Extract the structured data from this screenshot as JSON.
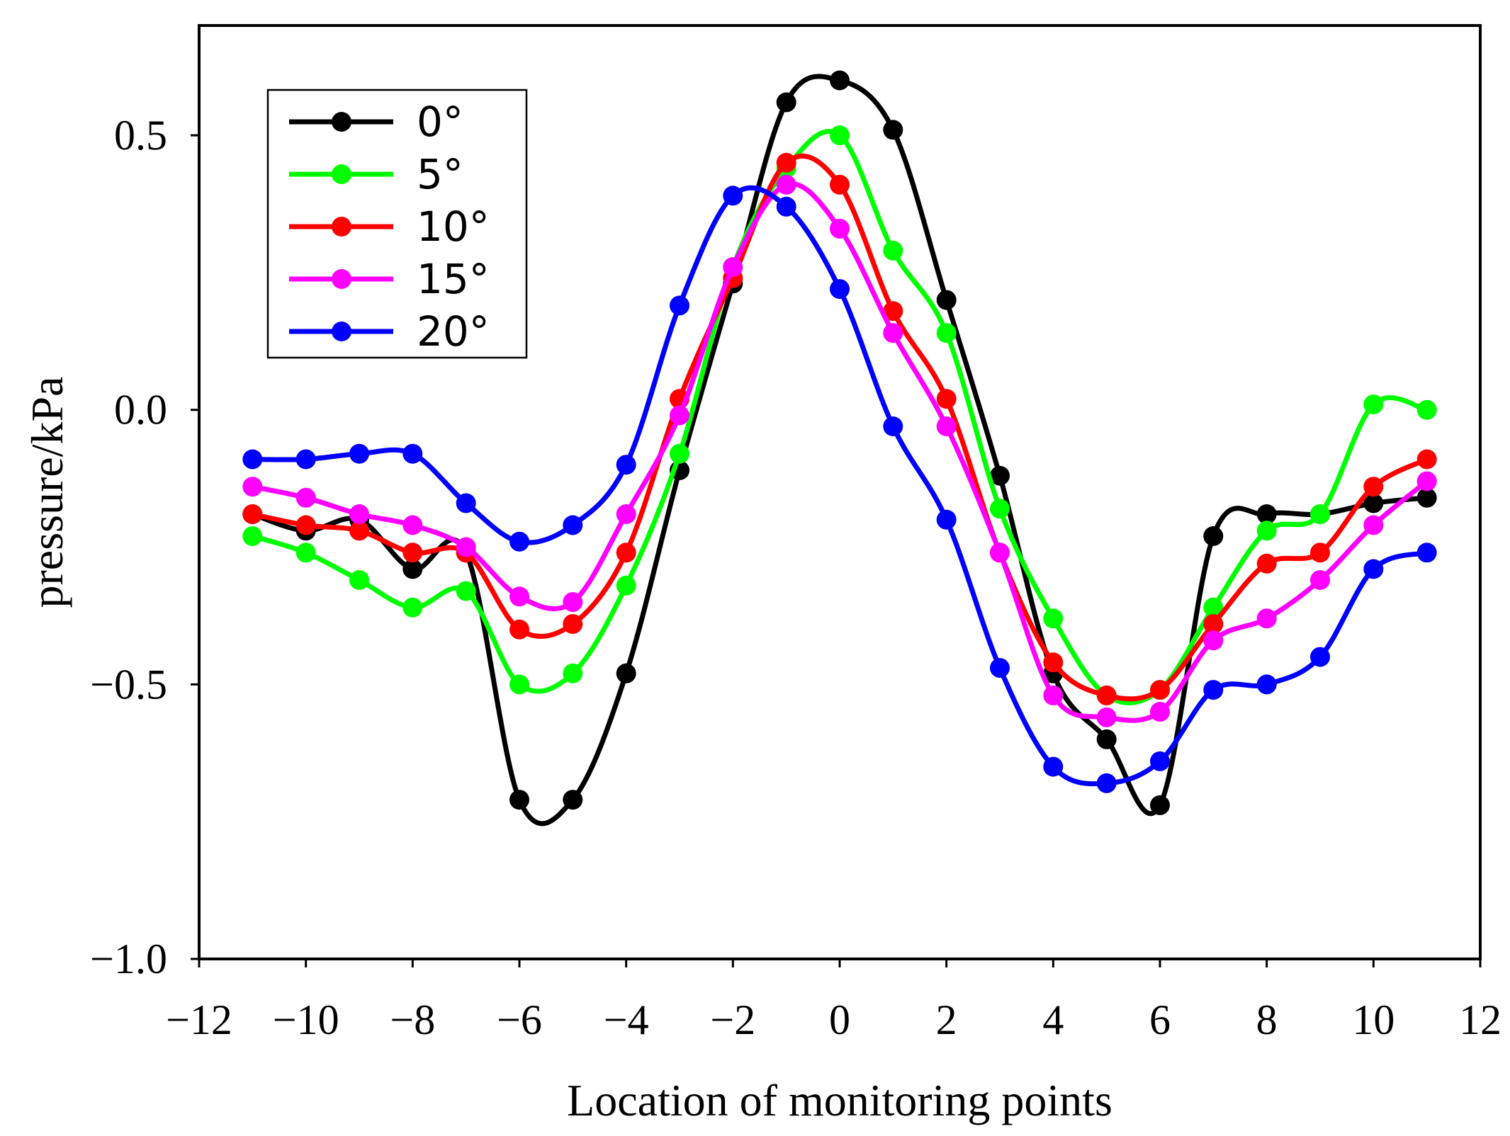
{
  "chart_data": {
    "type": "line",
    "title": "",
    "xlabel": "Location of monitoring points",
    "ylabel": "pressure/kPa",
    "xlim": [
      -12,
      12
    ],
    "ylim": [
      -1.0,
      0.7
    ],
    "xticks": [
      -12,
      -10,
      -8,
      -6,
      -4,
      -2,
      0,
      2,
      4,
      6,
      8,
      10,
      12
    ],
    "xtick_labels": [
      "−12",
      "−10",
      "−8",
      "−6",
      "−4",
      "−2",
      "0",
      "2",
      "4",
      "6",
      "8",
      "10",
      "12"
    ],
    "yticks": [
      -1.0,
      -0.5,
      0.0,
      0.5
    ],
    "ytick_labels": [
      "−1.0",
      "−0.5",
      "0.0",
      "0.5"
    ],
    "grid": false,
    "legend_position": "top-left",
    "x": [
      -11,
      -10,
      -9,
      -8,
      -7,
      -6,
      -5,
      -4,
      -3,
      -2,
      -1,
      0,
      1,
      2,
      3,
      4,
      5,
      6,
      7,
      8,
      9,
      10,
      11
    ],
    "series": [
      {
        "name": "0°",
        "color": "#000000",
        "values": [
          -0.19,
          -0.22,
          -0.2,
          -0.29,
          -0.26,
          -0.71,
          -0.71,
          -0.48,
          -0.11,
          0.23,
          0.56,
          0.6,
          0.51,
          0.2,
          -0.12,
          -0.48,
          -0.6,
          -0.72,
          -0.23,
          -0.19,
          -0.19,
          -0.17,
          -0.16
        ]
      },
      {
        "name": "5°",
        "color": "#00ff00",
        "values": [
          -0.23,
          -0.26,
          -0.31,
          -0.36,
          -0.33,
          -0.5,
          -0.48,
          -0.32,
          -0.08,
          0.26,
          0.44,
          0.5,
          0.29,
          0.14,
          -0.18,
          -0.38,
          -0.52,
          -0.51,
          -0.36,
          -0.22,
          -0.19,
          0.01,
          0.0
        ]
      },
      {
        "name": "10°",
        "color": "#ff0000",
        "values": [
          -0.19,
          -0.21,
          -0.22,
          -0.26,
          -0.26,
          -0.4,
          -0.39,
          -0.26,
          0.02,
          0.24,
          0.45,
          0.41,
          0.18,
          0.02,
          -0.26,
          -0.46,
          -0.52,
          -0.51,
          -0.39,
          -0.28,
          -0.26,
          -0.14,
          -0.09
        ]
      },
      {
        "name": "15°",
        "color": "#ff00ff",
        "values": [
          -0.14,
          -0.16,
          -0.19,
          -0.21,
          -0.25,
          -0.34,
          -0.35,
          -0.19,
          -0.01,
          0.26,
          0.41,
          0.33,
          0.14,
          -0.03,
          -0.26,
          -0.52,
          -0.56,
          -0.55,
          -0.42,
          -0.38,
          -0.31,
          -0.21,
          -0.13
        ]
      },
      {
        "name": "20°",
        "color": "#0000ff",
        "values": [
          -0.09,
          -0.09,
          -0.08,
          -0.08,
          -0.17,
          -0.24,
          -0.21,
          -0.1,
          0.19,
          0.39,
          0.37,
          0.22,
          -0.03,
          -0.2,
          -0.47,
          -0.65,
          -0.68,
          -0.64,
          -0.51,
          -0.5,
          -0.45,
          -0.29,
          -0.26
        ]
      }
    ]
  }
}
